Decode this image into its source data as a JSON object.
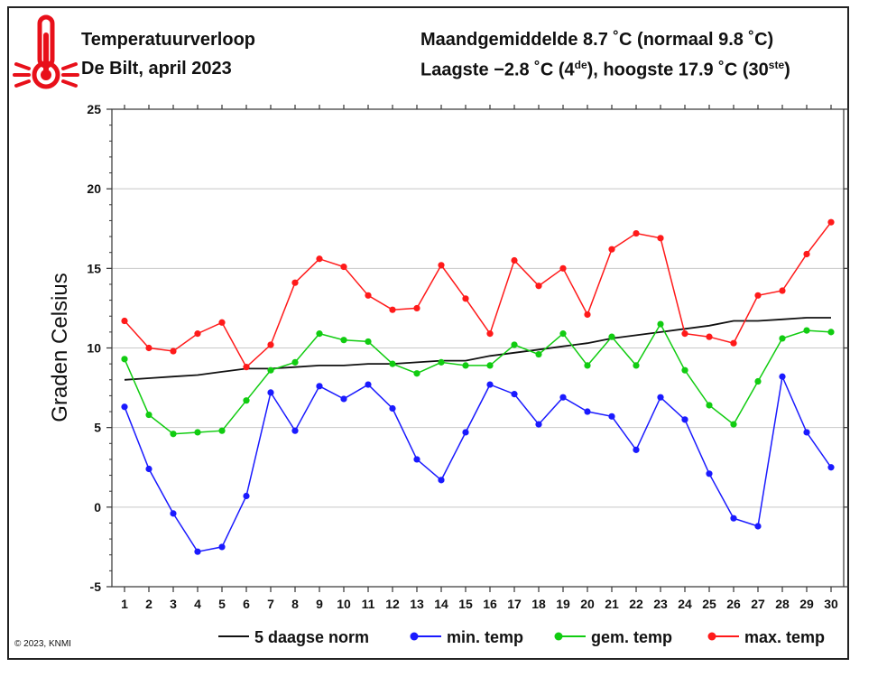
{
  "header": {
    "title": "Temperatuurverloop",
    "subtitle": "De Bilt, april 2023",
    "summary_line1": "Maandgemiddelde 8.7 ˚C (normaal 9.8 ˚C)",
    "summary_line2_a": "Laagste −2.8 ˚C (4",
    "summary_line2_sup1": "de",
    "summary_line2_b": "), hoogste 17.9 ˚C (30",
    "summary_line2_sup2": "ste",
    "summary_line2_c": ")"
  },
  "icon": {
    "name": "thermometer-icon",
    "color": "#e8101a"
  },
  "copyright": "© 2023, KNMI",
  "colors": {
    "norm": "#111111",
    "min": "#1a1aff",
    "gem": "#11cc11",
    "max": "#ff1a1a",
    "grid": "#c8c8c8"
  },
  "chart_data": {
    "type": "line",
    "ylabel": "Graden Celsius",
    "xlabel": "",
    "ylim": [
      -5,
      25
    ],
    "yticks": [
      -5,
      0,
      5,
      10,
      15,
      20,
      25
    ],
    "x": [
      1,
      2,
      3,
      4,
      5,
      6,
      7,
      8,
      9,
      10,
      11,
      12,
      13,
      14,
      15,
      16,
      17,
      18,
      19,
      20,
      21,
      22,
      23,
      24,
      25,
      26,
      27,
      28,
      29,
      30
    ],
    "grid": "horizontal",
    "legend_position": "bottom",
    "series": [
      {
        "name": "5 daagse norm",
        "key": "norm",
        "markers": false,
        "values": [
          8.0,
          8.1,
          8.2,
          8.3,
          8.5,
          8.7,
          8.7,
          8.8,
          8.9,
          8.9,
          9.0,
          9.0,
          9.1,
          9.2,
          9.2,
          9.5,
          9.7,
          9.9,
          10.1,
          10.3,
          10.6,
          10.8,
          11.0,
          11.2,
          11.4,
          11.7,
          11.7,
          11.8,
          11.9,
          11.9
        ]
      },
      {
        "name": "min. temp",
        "key": "min",
        "markers": true,
        "values": [
          6.3,
          2.4,
          -0.4,
          -2.8,
          -2.5,
          0.7,
          7.2,
          4.8,
          7.6,
          6.8,
          7.7,
          6.2,
          3.0,
          1.7,
          4.7,
          7.7,
          7.1,
          5.2,
          6.9,
          6.0,
          5.7,
          3.6,
          6.9,
          5.5,
          2.1,
          -0.7,
          -1.2,
          8.2,
          4.7,
          2.5
        ]
      },
      {
        "name": "gem. temp",
        "key": "gem",
        "markers": true,
        "values": [
          9.3,
          5.8,
          4.6,
          4.7,
          4.8,
          6.7,
          8.6,
          9.1,
          10.9,
          10.5,
          10.4,
          9.0,
          8.4,
          9.1,
          8.9,
          8.9,
          10.2,
          9.6,
          10.9,
          8.9,
          10.7,
          8.9,
          11.5,
          8.6,
          6.4,
          5.2,
          7.9,
          10.6,
          11.1,
          11.0
        ]
      },
      {
        "name": "max. temp",
        "key": "max",
        "markers": true,
        "values": [
          11.7,
          10.0,
          9.8,
          10.9,
          11.6,
          8.8,
          10.2,
          14.1,
          15.6,
          15.1,
          13.3,
          12.4,
          12.5,
          15.2,
          13.1,
          10.9,
          15.5,
          13.9,
          15.0,
          12.1,
          16.2,
          17.2,
          16.9,
          10.9,
          10.7,
          10.3,
          13.3,
          13.6,
          15.9,
          17.9
        ]
      }
    ]
  }
}
